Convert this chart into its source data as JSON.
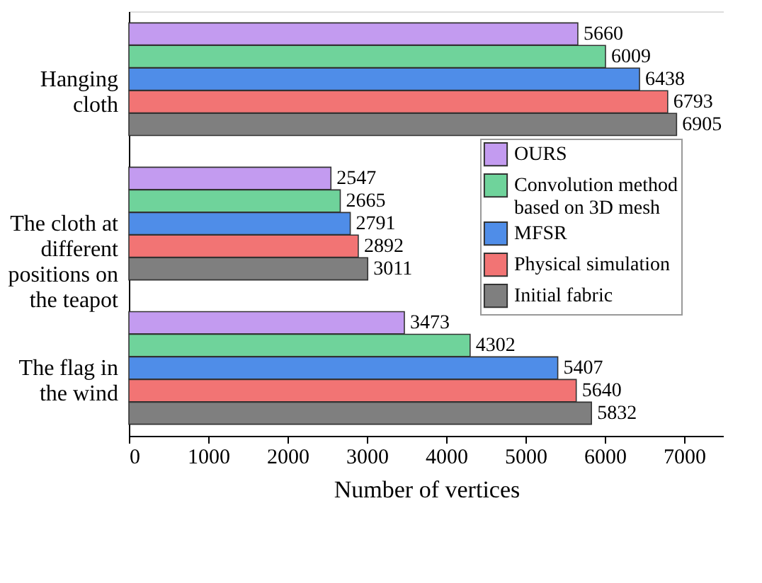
{
  "chart_data": {
    "type": "bar",
    "orientation": "horizontal",
    "xlabel": "Number of vertices",
    "categories": [
      "Hanging cloth",
      "The cloth at different positions on the teapot",
      "The flag in the wind"
    ],
    "series": [
      {
        "name": "OURS",
        "color": "#c39bf0",
        "values": [
          5660,
          2547,
          3473
        ]
      },
      {
        "name": "Convolution method based on 3D mesh",
        "color": "#6fd39b",
        "values": [
          6009,
          2665,
          4302
        ]
      },
      {
        "name": "MFSR",
        "color": "#4f8de8",
        "values": [
          6438,
          2791,
          5407
        ]
      },
      {
        "name": "Physical simulation",
        "color": "#f27474",
        "values": [
          6793,
          2892,
          5640
        ]
      },
      {
        "name": "Initial fabric",
        "color": "#7f7f7f",
        "values": [
          6905,
          3011,
          5832
        ]
      }
    ],
    "xlim": [
      0,
      7500
    ],
    "xticks": [
      0,
      1000,
      2000,
      3000,
      4000,
      5000,
      6000,
      7000
    ],
    "data_labels": true,
    "grid": false,
    "legend": "right"
  }
}
